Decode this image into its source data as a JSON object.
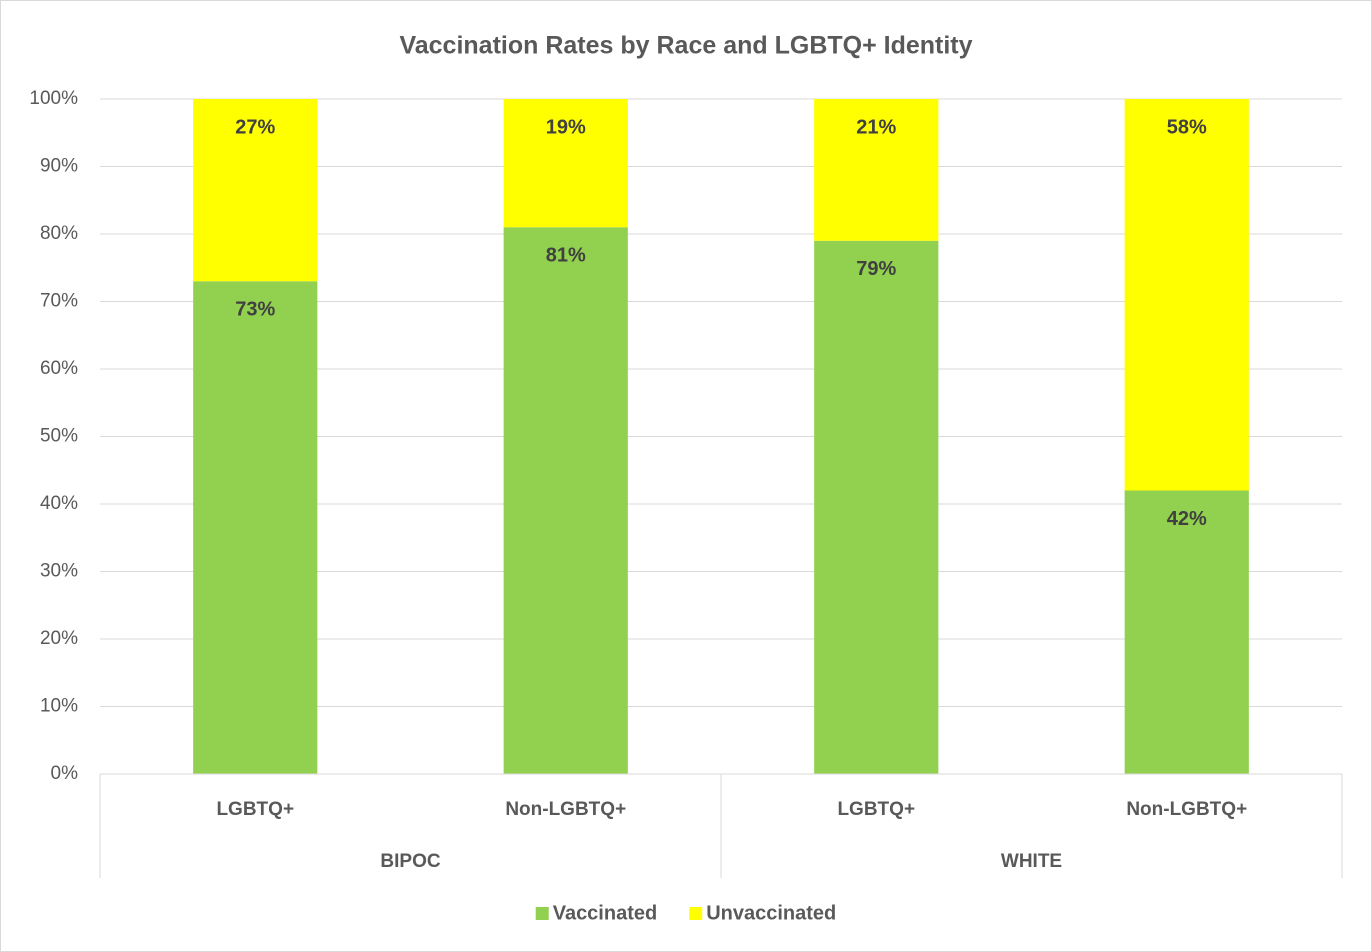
{
  "chart_data": {
    "type": "stacked_bar",
    "title": "Vaccination Rates by Race and LGBTQ+ Identity",
    "categories": [
      "LGBTQ+",
      "Non-LGBTQ+",
      "LGBTQ+",
      "Non-LGBTQ+"
    ],
    "groups": [
      "BIPOC",
      "WHITE"
    ],
    "series": [
      {
        "name": "Vaccinated",
        "color": "#92d050",
        "values": [
          73,
          81,
          79,
          42
        ],
        "value_labels": [
          "73%",
          "81%",
          "79%",
          "42%"
        ]
      },
      {
        "name": "Unvaccinated",
        "color": "#ffff00",
        "values": [
          27,
          19,
          21,
          58
        ],
        "value_labels": [
          "27%",
          "19%",
          "21%",
          "58%"
        ]
      }
    ],
    "ylim": [
      0,
      100
    ],
    "yticks": [
      {
        "value": 0,
        "label": "0%"
      },
      {
        "value": 10,
        "label": "10%"
      },
      {
        "value": 20,
        "label": "20%"
      },
      {
        "value": 30,
        "label": "30%"
      },
      {
        "value": 40,
        "label": "40%"
      },
      {
        "value": 50,
        "label": "50%"
      },
      {
        "value": 60,
        "label": "60%"
      },
      {
        "value": 70,
        "label": "70%"
      },
      {
        "value": 80,
        "label": "80%"
      },
      {
        "value": 90,
        "label": "90%"
      },
      {
        "value": 100,
        "label": "100%"
      }
    ],
    "grid": true,
    "legend": "bottom"
  }
}
